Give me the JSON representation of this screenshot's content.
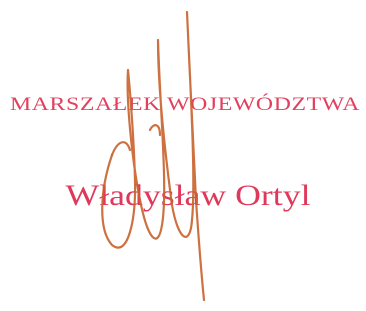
{
  "stamp": {
    "title": "MARSZAŁEK WOJEWÓDZTWA",
    "name": "Władysław Ortyl"
  }
}
